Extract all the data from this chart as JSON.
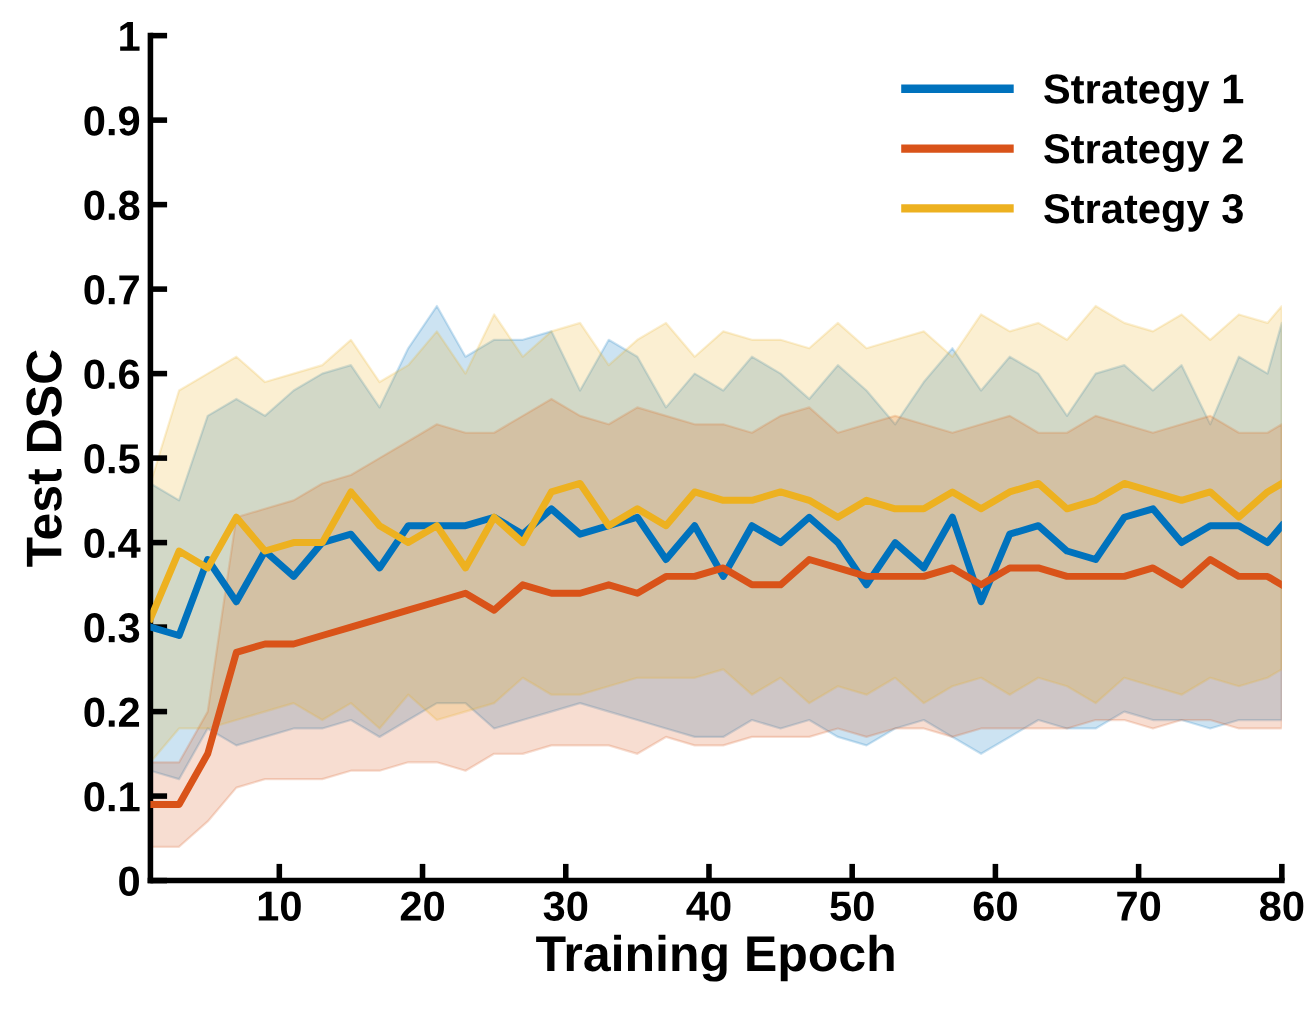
{
  "chart_data": {
    "type": "line",
    "xlabel": "Training Epoch",
    "ylabel": "Test DSC",
    "x": [
      1,
      3,
      5,
      7,
      9,
      11,
      13,
      15,
      17,
      19,
      21,
      23,
      25,
      27,
      29,
      31,
      33,
      35,
      37,
      39,
      41,
      43,
      45,
      47,
      49,
      51,
      53,
      55,
      57,
      59,
      61,
      63,
      65,
      67,
      69,
      71,
      73,
      75,
      77,
      79,
      80
    ],
    "series": [
      {
        "name": "Strategy 1",
        "color": "#0072bd",
        "values": [
          0.3,
          0.29,
          0.38,
          0.33,
          0.39,
          0.36,
          0.4,
          0.41,
          0.37,
          0.42,
          0.42,
          0.42,
          0.43,
          0.41,
          0.44,
          0.41,
          0.42,
          0.43,
          0.38,
          0.42,
          0.36,
          0.42,
          0.4,
          0.43,
          0.4,
          0.35,
          0.4,
          0.37,
          0.43,
          0.33,
          0.41,
          0.42,
          0.39,
          0.38,
          0.43,
          0.44,
          0.4,
          0.42,
          0.42,
          0.4,
          0.42
        ],
        "lower": [
          0.13,
          0.12,
          0.18,
          0.16,
          0.17,
          0.18,
          0.18,
          0.19,
          0.17,
          0.19,
          0.21,
          0.21,
          0.18,
          0.19,
          0.2,
          0.21,
          0.2,
          0.19,
          0.18,
          0.17,
          0.17,
          0.19,
          0.18,
          0.19,
          0.17,
          0.16,
          0.18,
          0.19,
          0.17,
          0.15,
          0.17,
          0.19,
          0.18,
          0.18,
          0.2,
          0.19,
          0.19,
          0.18,
          0.19,
          0.19,
          0.19
        ],
        "upper": [
          0.47,
          0.45,
          0.55,
          0.57,
          0.55,
          0.58,
          0.6,
          0.61,
          0.56,
          0.63,
          0.68,
          0.62,
          0.64,
          0.64,
          0.65,
          0.58,
          0.64,
          0.62,
          0.56,
          0.6,
          0.58,
          0.62,
          0.6,
          0.57,
          0.61,
          0.58,
          0.54,
          0.59,
          0.63,
          0.58,
          0.62,
          0.6,
          0.55,
          0.6,
          0.61,
          0.58,
          0.61,
          0.54,
          0.62,
          0.6,
          0.66
        ]
      },
      {
        "name": "Strategy 2",
        "color": "#d95319",
        "values": [
          0.09,
          0.09,
          0.15,
          0.27,
          0.28,
          0.28,
          0.29,
          0.3,
          0.31,
          0.32,
          0.33,
          0.34,
          0.32,
          0.35,
          0.34,
          0.34,
          0.35,
          0.34,
          0.36,
          0.36,
          0.37,
          0.35,
          0.35,
          0.38,
          0.37,
          0.36,
          0.36,
          0.36,
          0.37,
          0.35,
          0.37,
          0.37,
          0.36,
          0.36,
          0.36,
          0.37,
          0.35,
          0.38,
          0.36,
          0.36,
          0.35
        ],
        "lower": [
          0.04,
          0.04,
          0.07,
          0.11,
          0.12,
          0.12,
          0.12,
          0.13,
          0.13,
          0.14,
          0.14,
          0.13,
          0.15,
          0.15,
          0.16,
          0.16,
          0.16,
          0.15,
          0.17,
          0.16,
          0.16,
          0.17,
          0.17,
          0.17,
          0.18,
          0.17,
          0.18,
          0.18,
          0.17,
          0.18,
          0.18,
          0.18,
          0.18,
          0.19,
          0.19,
          0.18,
          0.19,
          0.19,
          0.18,
          0.18,
          0.18
        ],
        "upper": [
          0.14,
          0.14,
          0.2,
          0.43,
          0.44,
          0.45,
          0.47,
          0.48,
          0.5,
          0.52,
          0.54,
          0.53,
          0.53,
          0.55,
          0.57,
          0.55,
          0.54,
          0.56,
          0.55,
          0.54,
          0.54,
          0.53,
          0.55,
          0.56,
          0.53,
          0.54,
          0.55,
          0.54,
          0.53,
          0.54,
          0.55,
          0.53,
          0.53,
          0.55,
          0.54,
          0.53,
          0.54,
          0.55,
          0.53,
          0.53,
          0.54
        ]
      },
      {
        "name": "Strategy 3",
        "color": "#edb120",
        "values": [
          0.31,
          0.39,
          0.37,
          0.43,
          0.39,
          0.4,
          0.4,
          0.46,
          0.42,
          0.4,
          0.42,
          0.37,
          0.43,
          0.4,
          0.46,
          0.47,
          0.42,
          0.44,
          0.42,
          0.46,
          0.45,
          0.45,
          0.46,
          0.45,
          0.43,
          0.45,
          0.44,
          0.44,
          0.46,
          0.44,
          0.46,
          0.47,
          0.44,
          0.45,
          0.47,
          0.46,
          0.45,
          0.46,
          0.43,
          0.46,
          0.47
        ],
        "lower": [
          0.14,
          0.18,
          0.18,
          0.19,
          0.2,
          0.21,
          0.19,
          0.21,
          0.18,
          0.22,
          0.19,
          0.2,
          0.21,
          0.24,
          0.22,
          0.22,
          0.23,
          0.24,
          0.24,
          0.24,
          0.25,
          0.22,
          0.24,
          0.21,
          0.23,
          0.22,
          0.24,
          0.21,
          0.23,
          0.24,
          0.22,
          0.24,
          0.23,
          0.21,
          0.24,
          0.23,
          0.22,
          0.24,
          0.23,
          0.24,
          0.25
        ],
        "upper": [
          0.47,
          0.58,
          0.6,
          0.62,
          0.59,
          0.6,
          0.61,
          0.64,
          0.59,
          0.61,
          0.65,
          0.6,
          0.67,
          0.62,
          0.65,
          0.66,
          0.61,
          0.64,
          0.66,
          0.62,
          0.65,
          0.64,
          0.64,
          0.63,
          0.66,
          0.63,
          0.64,
          0.65,
          0.62,
          0.67,
          0.65,
          0.66,
          0.64,
          0.68,
          0.66,
          0.65,
          0.67,
          0.64,
          0.67,
          0.66,
          0.68
        ]
      }
    ],
    "xlim": [
      1,
      80
    ],
    "xticks": [
      10,
      20,
      30,
      40,
      50,
      60,
      70,
      80
    ],
    "ylim": [
      0,
      1
    ],
    "yticks": [
      0,
      0.1,
      0.2,
      0.3,
      0.4,
      0.5,
      0.6,
      0.7,
      0.8,
      0.9,
      1
    ],
    "grid": false,
    "legend": "top right",
    "line_style": "solid",
    "marker": "none"
  }
}
